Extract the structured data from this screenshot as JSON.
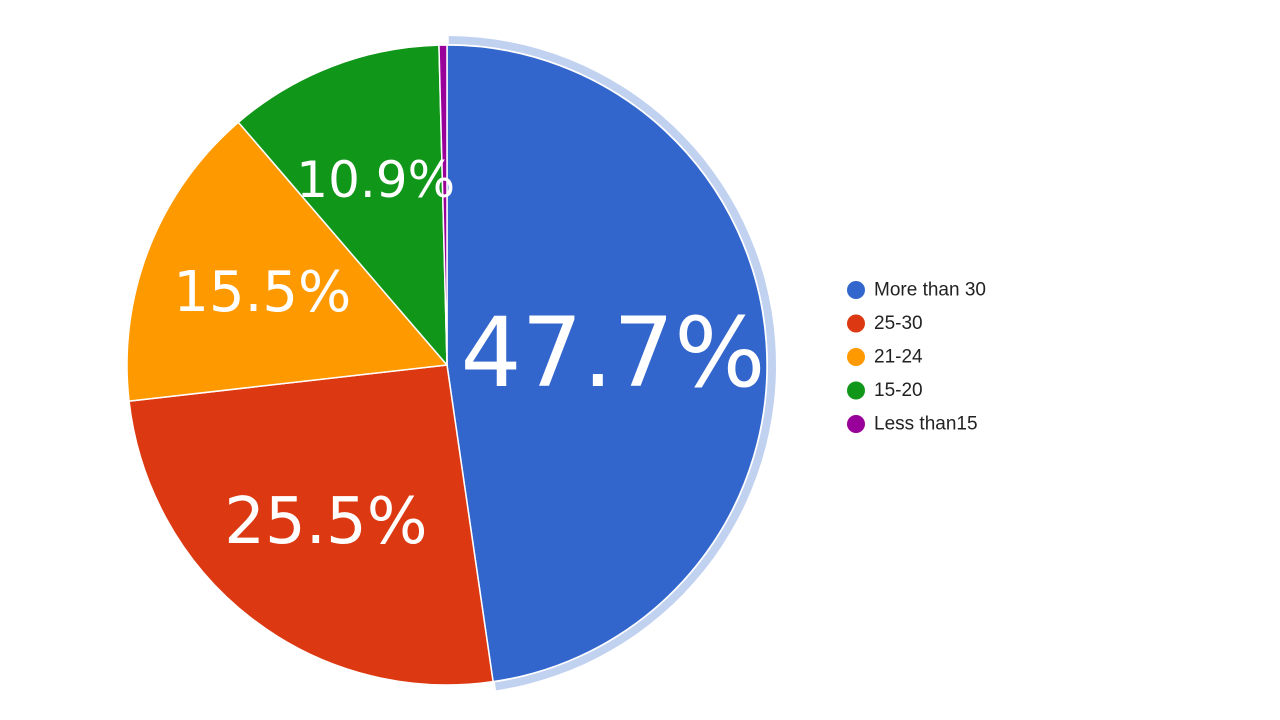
{
  "chart_data": {
    "type": "pie",
    "title": "",
    "start_angle_deg": 0,
    "direction": "clockwise",
    "highlighted_slice": "More than 30",
    "legend_position": "right",
    "slices": [
      {
        "label": "More than 30",
        "value": 47.7,
        "display": "47.7%",
        "color": "#3366cc"
      },
      {
        "label": "25-30",
        "value": 25.5,
        "display": "25.5%",
        "color": "#dc3912"
      },
      {
        "label": "21-24",
        "value": 15.5,
        "display": "15.5%",
        "color": "#ff9900"
      },
      {
        "label": "15-20",
        "value": 10.9,
        "display": "10.9%",
        "color": "#109618"
      },
      {
        "label": "Less than15",
        "value": 0.4,
        "display": "",
        "color": "#990099"
      }
    ]
  }
}
